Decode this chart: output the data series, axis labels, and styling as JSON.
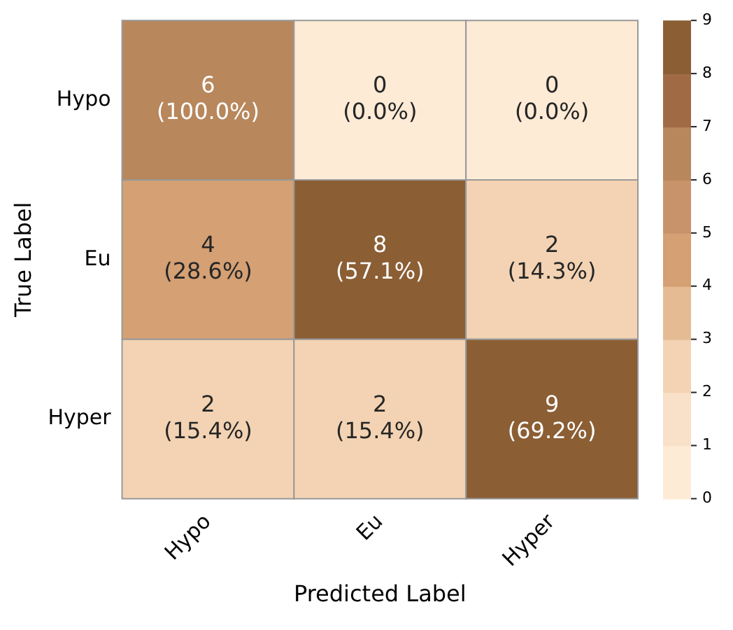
{
  "chart_data": {
    "type": "heatmap",
    "xlabel": "Predicted Label",
    "ylabel": "True Label",
    "categories": [
      "Hypo",
      "Eu",
      "Hyper"
    ],
    "y_categories": [
      "Hypo",
      "Eu",
      "Hyper"
    ],
    "cells": [
      [
        6,
        0,
        0
      ],
      [
        4,
        8,
        2
      ],
      [
        2,
        2,
        9
      ]
    ],
    "data_labels": true,
    "annotations": [
      "(100.0%)",
      "(0.0%)",
      "(0.0%)",
      "(28.6%)",
      "(57.1%)",
      "(14.3%)",
      "(15.4%)",
      "(15.4%)",
      "(69.2%)"
    ],
    "colors": [
      "#feebd6",
      "#f9e0c8",
      "#f3d3b3",
      "#e5bb93",
      "#d4a074",
      "#c8936a",
      "#b8875c",
      "#a06b44",
      "#8b5e34"
    ],
    "clim": [
      0,
      9
    ],
    "cticks": [
      0,
      1,
      2,
      3,
      4,
      5,
      6,
      7,
      8,
      9
    ]
  }
}
